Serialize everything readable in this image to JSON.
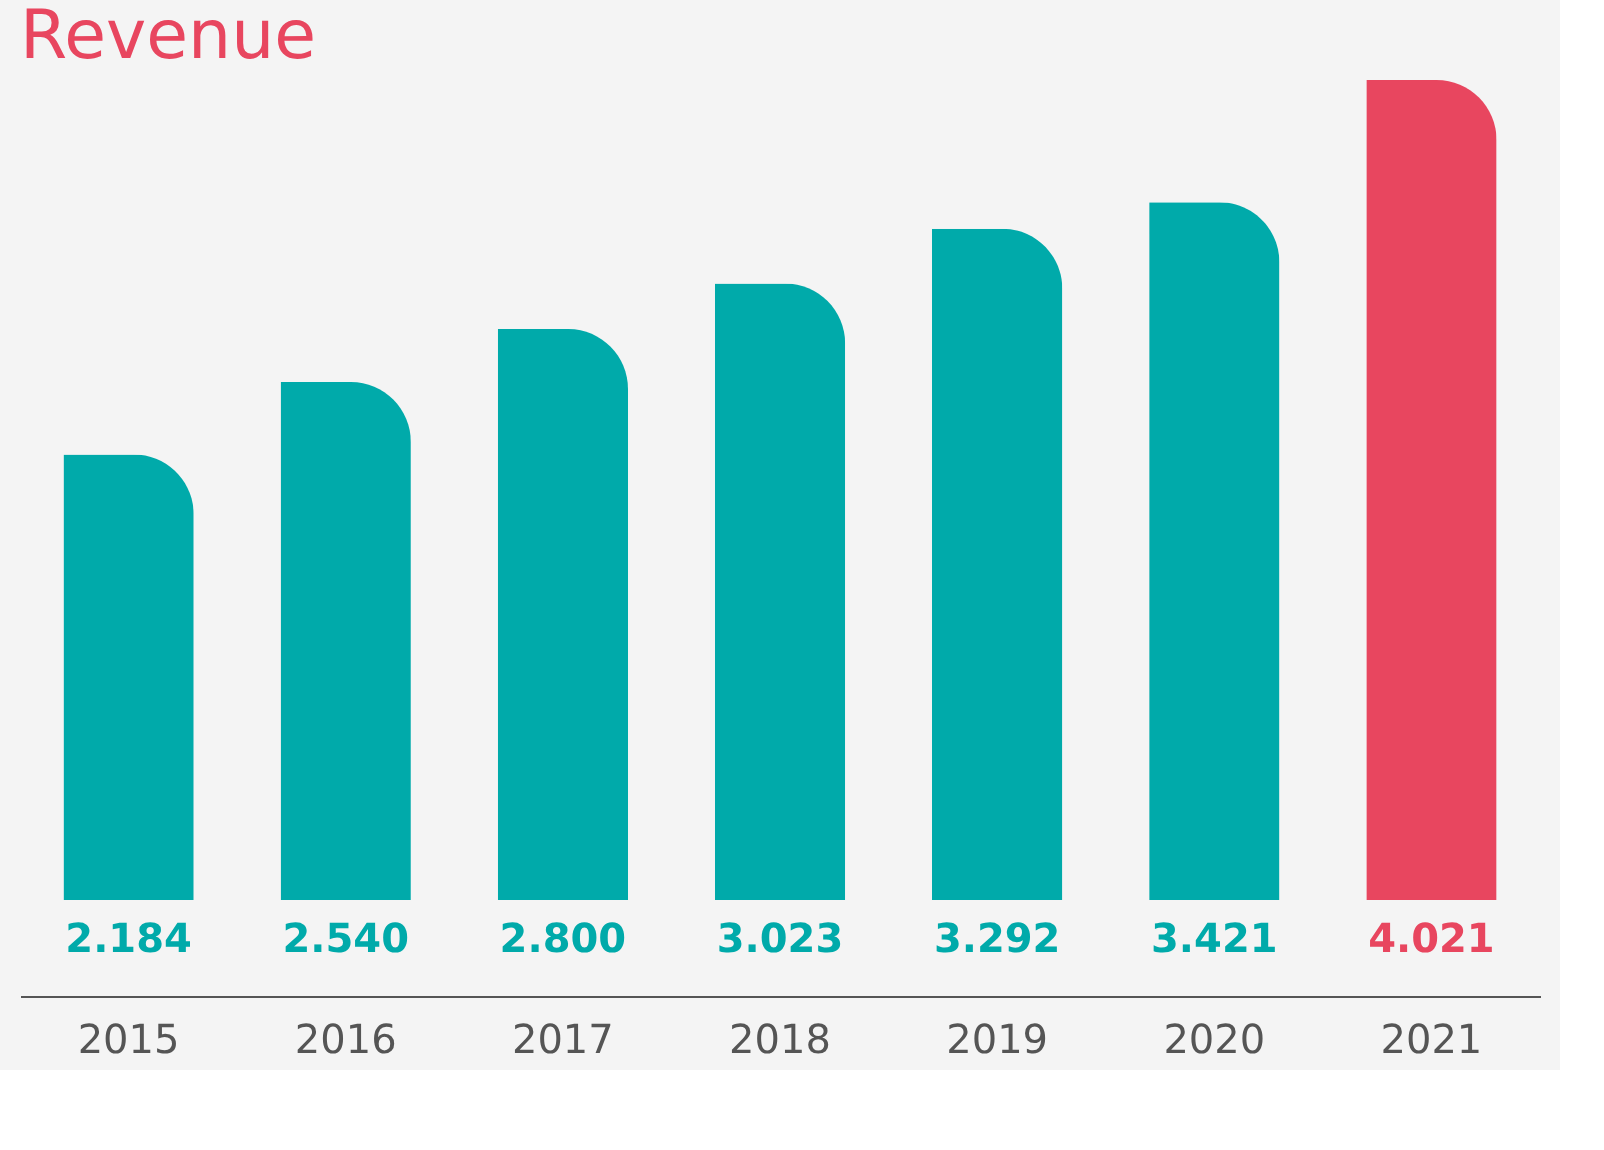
{
  "chart_data": {
    "type": "bar",
    "title": "Revenue",
    "categories": [
      "2015",
      "2016",
      "2017",
      "2018",
      "2019",
      "2020",
      "2021"
    ],
    "values": [
      2.184,
      2.54,
      2.8,
      3.023,
      3.292,
      3.421,
      4.021
    ],
    "value_labels": [
      "2.184",
      "2.540",
      "2.800",
      "3.023",
      "3.292",
      "3.421",
      "4.021"
    ],
    "colors": [
      "#00aaaa",
      "#00aaaa",
      "#00aaaa",
      "#00aaaa",
      "#00aaaa",
      "#00aaaa",
      "#e8465f"
    ],
    "grid": false
  }
}
